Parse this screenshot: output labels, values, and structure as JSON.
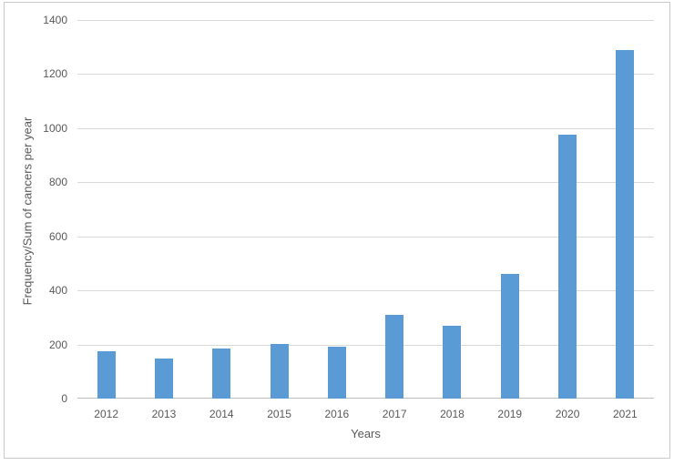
{
  "chart_data": {
    "type": "bar",
    "title": "",
    "categories": [
      "2012",
      "2013",
      "2014",
      "2015",
      "2016",
      "2017",
      "2018",
      "2019",
      "2020",
      "2021"
    ],
    "values": [
      175,
      147,
      186,
      202,
      191,
      309,
      270,
      461,
      976,
      1288
    ],
    "xlabel": "Years",
    "ylabel": "Frequency/Sum of cancers per year",
    "ylim": [
      0,
      1400
    ],
    "yticks": [
      0,
      200,
      400,
      600,
      800,
      1000,
      1200,
      1400
    ],
    "grid": true,
    "legend": false,
    "colors": {
      "bar": "#5B9BD5",
      "gridline": "#D9D9D9",
      "axis_line": "#BFBFBF",
      "tick_label": "#595959",
      "axis_title": "#595959",
      "frame_border": "#C9C9C9",
      "background": "#FFFFFF"
    }
  }
}
